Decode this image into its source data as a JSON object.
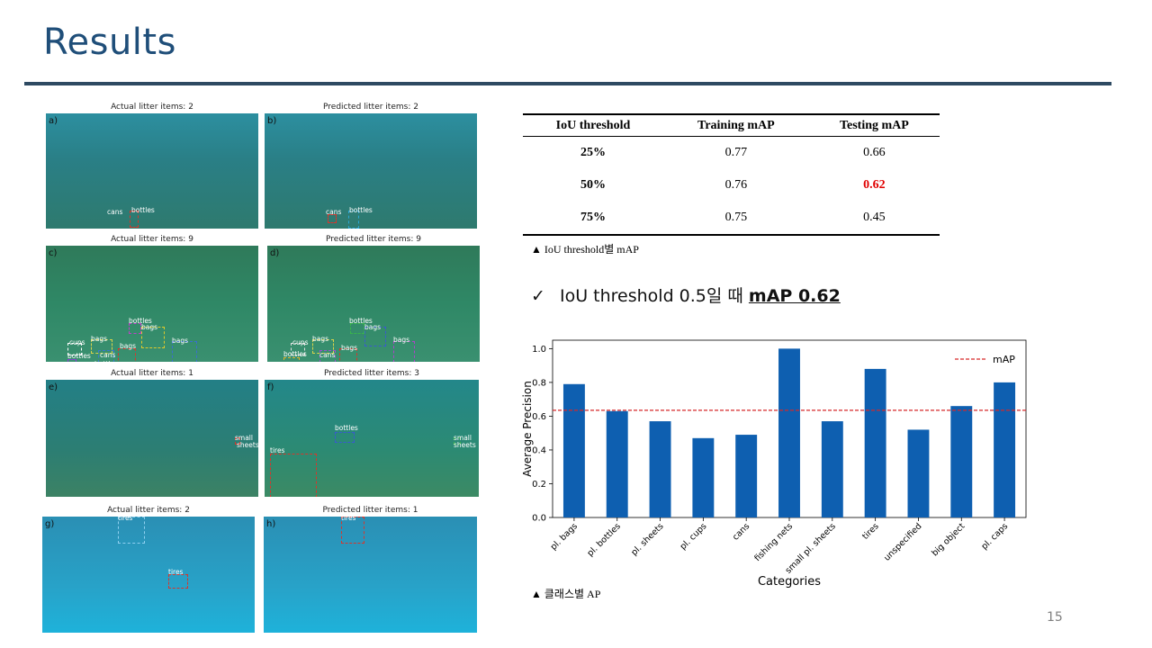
{
  "title": "Results",
  "page_number": "15",
  "panels": [
    {
      "caption": "Actual litter items: 2",
      "label": "a)",
      "labels": [
        "cans",
        "bottles"
      ]
    },
    {
      "caption": "Predicted litter items: 2",
      "label": "b)",
      "labels": [
        "cans",
        "bottles"
      ]
    },
    {
      "caption": "Actual litter items: 9",
      "label": "c)",
      "labels": [
        "bottles",
        "bags",
        "cups",
        "bags",
        "bottles",
        "cans",
        "bags",
        "bottles",
        "bags"
      ]
    },
    {
      "caption": "Predicted litter items: 9",
      "label": "d)",
      "labels": [
        "bottles",
        "bags",
        "cups",
        "bags",
        "bottles",
        "cans",
        "bags",
        "bottles",
        "bags"
      ]
    },
    {
      "caption": "Actual litter items: 1",
      "label": "e)",
      "labels": [
        "small",
        "sheets"
      ]
    },
    {
      "caption": "Predicted litter items: 3",
      "label": "f)",
      "labels": [
        "bottles",
        "tires",
        "small",
        "sheets"
      ]
    },
    {
      "caption": "Actual litter items: 2",
      "label": "g)",
      "labels": [
        "tires",
        "tires"
      ]
    },
    {
      "caption": "Predicted litter items: 1",
      "label": "h)",
      "labels": [
        "tires"
      ]
    }
  ],
  "table": {
    "headers": [
      "IoU threshold",
      "Training  mAP",
      "Testing mAP"
    ],
    "rows": [
      [
        "25%",
        "0.77",
        "0.66"
      ],
      [
        "50%",
        "0.76",
        "0.62"
      ],
      [
        "75%",
        "0.75",
        "0.45"
      ]
    ],
    "caption": "▲ IoU threshold별 mAP"
  },
  "checkmark": {
    "symbol": "✓",
    "text": "IoU threshold 0.5일 때 ",
    "highlight": "mAP 0.62"
  },
  "chart_caption": "▲ 클래스별 AP",
  "chart_data": {
    "type": "bar",
    "categories": [
      "pl. bags",
      "pl. bottles",
      "pl. sheets",
      "pl. cups",
      "cans",
      "fishing nets",
      "small pl. sheets",
      "tires",
      "unspecified",
      "big object",
      "pl. caps"
    ],
    "values": [
      0.79,
      0.63,
      0.57,
      0.47,
      0.49,
      1.0,
      0.57,
      0.88,
      0.52,
      0.66,
      0.8
    ],
    "xlabel": "Categories",
    "ylabel": "Average Precision",
    "ylim": [
      0.0,
      1.05
    ],
    "yticks": [
      "0.0",
      "0.2",
      "0.4",
      "0.6",
      "0.8",
      "1.0"
    ],
    "reference_line": {
      "name": "mAP",
      "value": 0.635
    },
    "legend": "top-right",
    "bar_color": "#0e5fb0",
    "line_color": "#d62728"
  },
  "colors": {
    "title": "#1f4e79",
    "highlight": "#e00000"
  }
}
